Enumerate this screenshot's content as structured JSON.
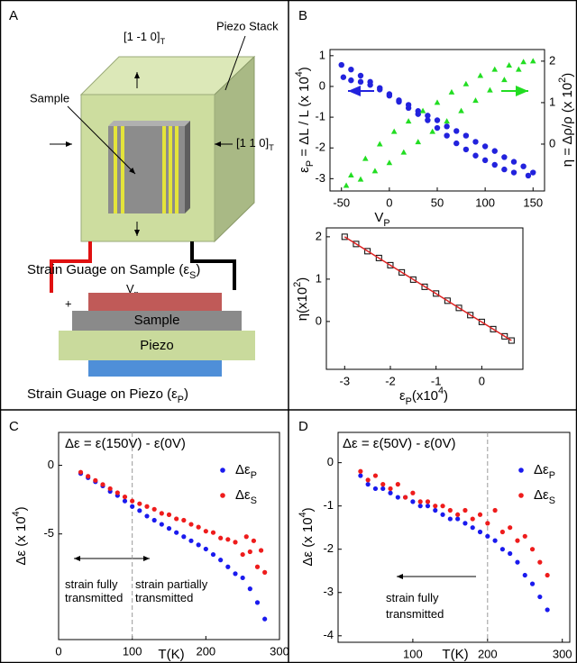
{
  "panels": [
    "A",
    "B",
    "C",
    "D"
  ],
  "diagram": {
    "direction_top": [
      {
        "text": "[1 -1 0]"
      },
      {
        "sub": "T"
      }
    ],
    "piezo_stack": "Piezo Stack",
    "sample": "Sample",
    "direction_right": [
      {
        "text": "[1 1 0]"
      },
      {
        "sub": "T"
      }
    ],
    "voltage": [
      {
        "text": "V"
      },
      {
        "sub": "p"
      }
    ],
    "plus": "+",
    "minus": "-",
    "sample_gauge": [
      {
        "text": "Strain Guage on Sample (ε"
      },
      {
        "sub": "S"
      },
      {
        "text": ")"
      }
    ],
    "layer_sample": "Sample",
    "layer_piezo": "Piezo",
    "piezo_gauge": [
      {
        "text": "Strain Guage on Piezo (ε"
      },
      {
        "sub": "P"
      },
      {
        "text": ")"
      }
    ]
  },
  "chart_data": [
    {
      "type": "scatter",
      "xlabel": [
        {
          "text": "V"
        },
        {
          "sub": "P"
        }
      ],
      "ylabel": [
        {
          "text": "ε"
        },
        {
          "sub": "P"
        },
        {
          "text": " = ΔL / L (x 10"
        },
        {
          "sup": "4"
        },
        {
          "text": ")"
        }
      ],
      "y2label": [
        {
          "text": "η = Δρ/ρ (x 10"
        },
        {
          "sup": "2"
        },
        {
          "text": ")"
        }
      ],
      "xlim": [
        -62,
        162
      ],
      "xticks": [
        -50,
        0,
        50,
        100,
        150
      ],
      "ylim": [
        -3.4,
        1.2
      ],
      "yticks": [
        -3,
        -2,
        -1,
        0,
        1
      ],
      "y2lim": [
        -1.13,
        2.28
      ],
      "y2ticks": [
        0,
        1,
        2
      ],
      "series": [
        {
          "color": "#2222dd",
          "marker": "circle",
          "style": "points",
          "x": [
            -50,
            -40,
            -30,
            -20,
            -10,
            0,
            10,
            20,
            30,
            40,
            50,
            60,
            70,
            80,
            90,
            100,
            110,
            120,
            130,
            140,
            150,
            145,
            130,
            120,
            110,
            100,
            90,
            80,
            70,
            60,
            50,
            40,
            30,
            20,
            10,
            0,
            -10,
            -20,
            -30,
            -40,
            -48
          ],
          "values": [
            0.7,
            0.55,
            0.35,
            0.15,
            -0.05,
            -0.25,
            -0.45,
            -0.6,
            -0.8,
            -0.95,
            -1.1,
            -1.3,
            -1.45,
            -1.6,
            -1.8,
            -1.95,
            -2.1,
            -2.3,
            -2.45,
            -2.6,
            -2.8,
            -2.9,
            -2.8,
            -2.7,
            -2.55,
            -2.4,
            -2.25,
            -2.05,
            -1.85,
            -1.6,
            -1.35,
            -1.1,
            -0.9,
            -0.7,
            -0.5,
            -0.3,
            -0.1,
            0.05,
            0.15,
            0.2,
            0.3
          ]
        },
        {
          "color": "#22dd22",
          "marker": "triangle",
          "style": "points",
          "axis": "y2",
          "x": [
            -45,
            -30,
            -15,
            0,
            15,
            30,
            45,
            60,
            75,
            90,
            105,
            120,
            135,
            150,
            140,
            125,
            110,
            95,
            80,
            65,
            50,
            35,
            20,
            5,
            -10,
            -25,
            -40
          ],
          "values": [
            -1.0,
            -0.85,
            -0.65,
            -0.45,
            -0.2,
            0.05,
            0.3,
            0.55,
            0.8,
            1.05,
            1.3,
            1.55,
            1.8,
            2.0,
            1.98,
            1.9,
            1.8,
            1.65,
            1.45,
            1.25,
            1.0,
            0.8,
            0.55,
            0.3,
            0.0,
            -0.35,
            -0.75
          ]
        }
      ]
    },
    {
      "type": "scatter",
      "xlabel": [
        {
          "text": "ε"
        },
        {
          "sub": "P"
        },
        {
          "text": "(x10"
        },
        {
          "sup": "4"
        },
        {
          "text": ")"
        }
      ],
      "ylabel": [
        {
          "text": "η(x10"
        },
        {
          "sup": "2"
        },
        {
          "text": ")"
        }
      ],
      "xlim": [
        -3.4,
        0.9
      ],
      "xticks": [
        -3,
        -2,
        -1,
        0
      ],
      "ylim": [
        -1.13,
        2.21
      ],
      "yticks": [
        0,
        1,
        2
      ],
      "series": [
        {
          "color": "#000000",
          "marker": "square",
          "style": "points",
          "x": [
            -3.0,
            -2.75,
            -2.5,
            -2.25,
            -2.0,
            -1.75,
            -1.5,
            -1.25,
            -1.0,
            -0.75,
            -0.5,
            -0.25,
            0.0,
            0.25,
            0.5,
            0.65
          ],
          "values": [
            2.0,
            1.83,
            1.66,
            1.5,
            1.33,
            1.16,
            0.99,
            0.82,
            0.66,
            0.49,
            0.32,
            0.15,
            -0.01,
            -0.18,
            -0.35,
            -0.45
          ]
        },
        {
          "color": "#dd2222",
          "style": "line",
          "x": [
            -3.0,
            0.65
          ],
          "values": [
            2.0,
            -0.45
          ]
        }
      ]
    },
    {
      "type": "scatter",
      "xlabel": "T(K)",
      "ylabel": [
        {
          "text": "Δε (x 10"
        },
        {
          "sup": "4"
        },
        {
          "text": ")"
        }
      ],
      "xlim": [
        0,
        300
      ],
      "xticks": [
        0,
        100,
        200,
        300
      ],
      "ylim": [
        -12.7,
        2.4
      ],
      "yticks": [
        0,
        -5
      ],
      "vlines": [
        100
      ],
      "annotations": [
        "Δε = ε(150V) -  ε(0V)",
        "strain fully",
        "transmitted",
        "strain partially",
        "transmitted"
      ],
      "series": [
        {
          "name": [
            {
              "text": "Δε"
            },
            {
              "sub": "P"
            }
          ],
          "color": "#1a1aee",
          "marker": "circle",
          "style": "points",
          "x": [
            30,
            40,
            50,
            60,
            70,
            80,
            90,
            100,
            110,
            120,
            130,
            140,
            150,
            160,
            170,
            180,
            190,
            200,
            210,
            220,
            230,
            240,
            250,
            260,
            270,
            280
          ],
          "values": [
            -0.6,
            -0.9,
            -1.2,
            -1.5,
            -1.9,
            -2.2,
            -2.6,
            -3.0,
            -3.3,
            -3.7,
            -4.0,
            -4.3,
            -4.6,
            -4.9,
            -5.2,
            -5.5,
            -5.8,
            -6.1,
            -6.5,
            -6.9,
            -7.4,
            -7.9,
            -8.2,
            -9.0,
            -10.0,
            -11.2
          ]
        },
        {
          "name": [
            {
              "text": "Δε"
            },
            {
              "sub": "S"
            }
          ],
          "color": "#ee1c1c",
          "marker": "circle",
          "style": "points",
          "x": [
            30,
            40,
            50,
            60,
            70,
            80,
            90,
            100,
            110,
            120,
            130,
            140,
            150,
            160,
            170,
            180,
            190,
            200,
            210,
            220,
            230,
            240,
            250,
            255,
            260,
            265,
            270,
            275,
            280
          ],
          "values": [
            -0.5,
            -0.8,
            -1.1,
            -1.4,
            -1.7,
            -2.0,
            -2.3,
            -2.6,
            -2.8,
            -3.0,
            -3.2,
            -3.5,
            -3.6,
            -3.9,
            -4.0,
            -4.3,
            -4.5,
            -4.8,
            -4.9,
            -5.3,
            -5.4,
            -5.6,
            -6.5,
            -5.2,
            -6.3,
            -5.5,
            -7.4,
            -6.2,
            -7.8
          ]
        }
      ]
    },
    {
      "type": "scatter",
      "xlabel": "T(K)",
      "ylabel": [
        {
          "text": "Δε (x 10"
        },
        {
          "sup": "4"
        },
        {
          "text": ")"
        }
      ],
      "xlim": [
        0,
        310
      ],
      "xticks": [
        100,
        200,
        300
      ],
      "ylim": [
        -4.15,
        0.7
      ],
      "yticks": [
        0,
        -1,
        -2,
        -3,
        -4
      ],
      "vlines": [
        200
      ],
      "annotations": [
        "Δε = ε(50V) - ε(0V)",
        "strain fully",
        "transmitted"
      ],
      "series": [
        {
          "name": [
            {
              "text": "Δε"
            },
            {
              "sub": "P"
            }
          ],
          "color": "#1a1aee",
          "marker": "circle",
          "style": "points",
          "x": [
            30,
            40,
            50,
            60,
            70,
            80,
            90,
            100,
            110,
            120,
            130,
            140,
            150,
            160,
            170,
            180,
            190,
            200,
            210,
            220,
            230,
            240,
            250,
            260,
            270,
            280
          ],
          "values": [
            -0.3,
            -0.5,
            -0.6,
            -0.6,
            -0.7,
            -0.8,
            -0.8,
            -0.9,
            -1.0,
            -1.0,
            -1.1,
            -1.2,
            -1.3,
            -1.3,
            -1.4,
            -1.5,
            -1.6,
            -1.7,
            -1.8,
            -2.0,
            -2.1,
            -2.3,
            -2.6,
            -2.8,
            -3.1,
            -3.4
          ]
        },
        {
          "name": [
            {
              "text": "Δε"
            },
            {
              "sub": "S"
            }
          ],
          "color": "#ee1c1c",
          "marker": "circle",
          "style": "points",
          "x": [
            30,
            40,
            50,
            60,
            70,
            80,
            90,
            100,
            110,
            120,
            130,
            140,
            150,
            160,
            170,
            180,
            190,
            200,
            210,
            220,
            230,
            240,
            250,
            260,
            270,
            280
          ],
          "values": [
            -0.2,
            -0.4,
            -0.3,
            -0.5,
            -0.6,
            -0.5,
            -0.8,
            -0.7,
            -0.9,
            -0.9,
            -1.0,
            -1.0,
            -1.1,
            -1.2,
            -1.1,
            -1.3,
            -1.2,
            -1.4,
            -1.1,
            -1.6,
            -1.5,
            -1.8,
            -1.7,
            -2.0,
            -2.3,
            -2.6
          ]
        }
      ]
    }
  ]
}
